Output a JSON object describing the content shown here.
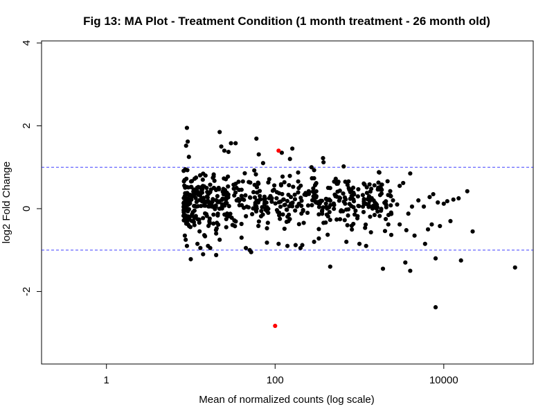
{
  "chart_data": {
    "type": "scatter",
    "title": "Fig 13: MA Plot - Treatment Condition (1 month treatment - 26 month old)",
    "xlabel": "Mean of normalized counts (log scale)",
    "ylabel": "log2 Fold Change",
    "x_scale": "log10",
    "xlim": [
      0.17,
      115000
    ],
    "ylim": [
      -3.75,
      4.05
    ],
    "x_ticks": [
      {
        "value": 1,
        "label": "1"
      },
      {
        "value": 100,
        "label": "100"
      },
      {
        "value": 10000,
        "label": "10000"
      }
    ],
    "y_ticks": [
      {
        "value": -2,
        "label": "-2"
      },
      {
        "value": 0,
        "label": "0"
      },
      {
        "value": 2,
        "label": "2"
      },
      {
        "value": 4,
        "label": "4"
      }
    ],
    "reference_lines": [
      1,
      -1
    ],
    "colors": {
      "point": "#000000",
      "highlight": "#ff0000",
      "reference_line": "#0000ff"
    },
    "series": [
      {
        "color": "#000000",
        "points": [
          [
            9.0,
            1.95
          ],
          [
            9.2,
            1.62
          ],
          [
            8.8,
            1.52
          ],
          [
            9.5,
            1.25
          ],
          [
            8.6,
            0.95
          ],
          [
            9.1,
            0.93
          ],
          [
            22,
            1.85
          ],
          [
            23,
            1.5
          ],
          [
            25,
            1.4
          ],
          [
            28,
            1.37
          ],
          [
            30,
            1.58
          ],
          [
            34,
            1.58
          ],
          [
            60,
            1.69
          ],
          [
            64,
            1.31
          ],
          [
            72,
            1.1
          ],
          [
            120,
            1.35
          ],
          [
            160,
            1.45
          ],
          [
            150,
            1.2
          ],
          [
            270,
            1.0
          ],
          [
            290,
            0.93
          ],
          [
            370,
            1.22
          ],
          [
            375,
            1.12
          ],
          [
            650,
            1.02
          ],
          [
            1700,
            0.88
          ],
          [
            8.5,
            -0.65
          ],
          [
            8.7,
            -0.75
          ],
          [
            9.0,
            -0.9
          ],
          [
            10,
            -1.22
          ],
          [
            12,
            -0.85
          ],
          [
            13,
            -0.95
          ],
          [
            14,
            -1.1
          ],
          [
            16,
            -0.9
          ],
          [
            17,
            -0.95
          ],
          [
            20,
            -1.12
          ],
          [
            20,
            -0.6
          ],
          [
            22,
            -0.75
          ],
          [
            40,
            -0.7
          ],
          [
            45,
            -0.95
          ],
          [
            50,
            -1.0
          ],
          [
            52,
            -1.05
          ],
          [
            80,
            -0.82
          ],
          [
            110,
            -0.85
          ],
          [
            140,
            -0.9
          ],
          [
            175,
            -0.88
          ],
          [
            200,
            -0.95
          ],
          [
            210,
            -0.88
          ],
          [
            290,
            -0.8
          ],
          [
            450,
            -1.4
          ],
          [
            330,
            -0.72
          ],
          [
            420,
            -0.63
          ],
          [
            700,
            -0.8
          ],
          [
            1000,
            -0.85
          ],
          [
            1200,
            -0.9
          ],
          [
            1900,
            -1.45
          ],
          [
            3500,
            -1.3
          ],
          [
            4000,
            -1.5
          ],
          [
            6000,
            -0.85
          ],
          [
            8000,
            -1.2
          ],
          [
            16000,
            -1.25
          ],
          [
            22000,
            -0.55
          ],
          [
            70000,
            -1.42
          ],
          [
            8000,
            -2.38
          ],
          [
            3000,
            -0.38
          ],
          [
            3600,
            -0.52
          ],
          [
            4500,
            -0.65
          ],
          [
            6500,
            -0.5
          ],
          [
            7200,
            -0.38
          ],
          [
            9000,
            -0.42
          ],
          [
            12000,
            -0.3
          ],
          [
            2200,
            -0.38
          ],
          [
            2500,
            0.2
          ],
          [
            2800,
            0.1
          ],
          [
            3000,
            0.55
          ],
          [
            3300,
            0.62
          ],
          [
            4000,
            0.85
          ],
          [
            5000,
            0.2
          ],
          [
            5800,
            0.05
          ],
          [
            6800,
            0.28
          ],
          [
            7500,
            0.35
          ],
          [
            8500,
            0.15
          ],
          [
            10000,
            0.12
          ],
          [
            11000,
            0.18
          ],
          [
            13000,
            0.22
          ],
          [
            15000,
            0.25
          ],
          [
            19000,
            0.42
          ],
          [
            3800,
            -0.12
          ],
          [
            4200,
            0.05
          ],
          [
            1500,
            0.08
          ],
          [
            1800,
            -0.05
          ],
          [
            1300,
            0.3
          ],
          [
            1100,
            0.05
          ],
          [
            950,
            -0.18
          ],
          [
            850,
            0.22
          ],
          [
            780,
            0.4
          ],
          [
            720,
            -0.4
          ],
          [
            680,
            0.65
          ]
        ]
      },
      {
        "color": "#ff0000",
        "points": [
          [
            110,
            1.4
          ],
          [
            100,
            -2.83
          ]
        ]
      }
    ]
  }
}
